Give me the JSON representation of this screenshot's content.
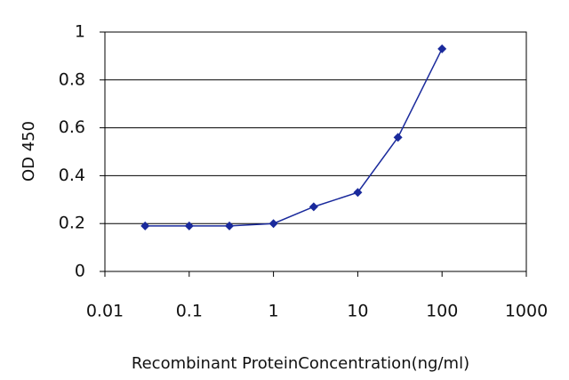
{
  "chart_data": {
    "type": "line",
    "x_label": "Recombinant ProteinConcentration(ng/ml)",
    "y_label": "OD 450",
    "x": [
      0.03,
      0.1,
      0.3,
      1,
      3,
      10,
      30,
      100
    ],
    "series": [
      {
        "color": "#1a2a9c",
        "values": [
          0.19,
          0.19,
          0.19,
          0.2,
          0.27,
          0.33,
          0.56,
          0.93
        ]
      }
    ],
    "x_scale": "log",
    "xlim": [
      0.01,
      1000
    ],
    "xticks": [
      0.01,
      0.1,
      1,
      10,
      100,
      1000
    ],
    "ylim": [
      0,
      1
    ],
    "yticks": [
      0,
      0.2,
      0.4,
      0.6,
      0.8,
      1
    ],
    "grid": true
  }
}
